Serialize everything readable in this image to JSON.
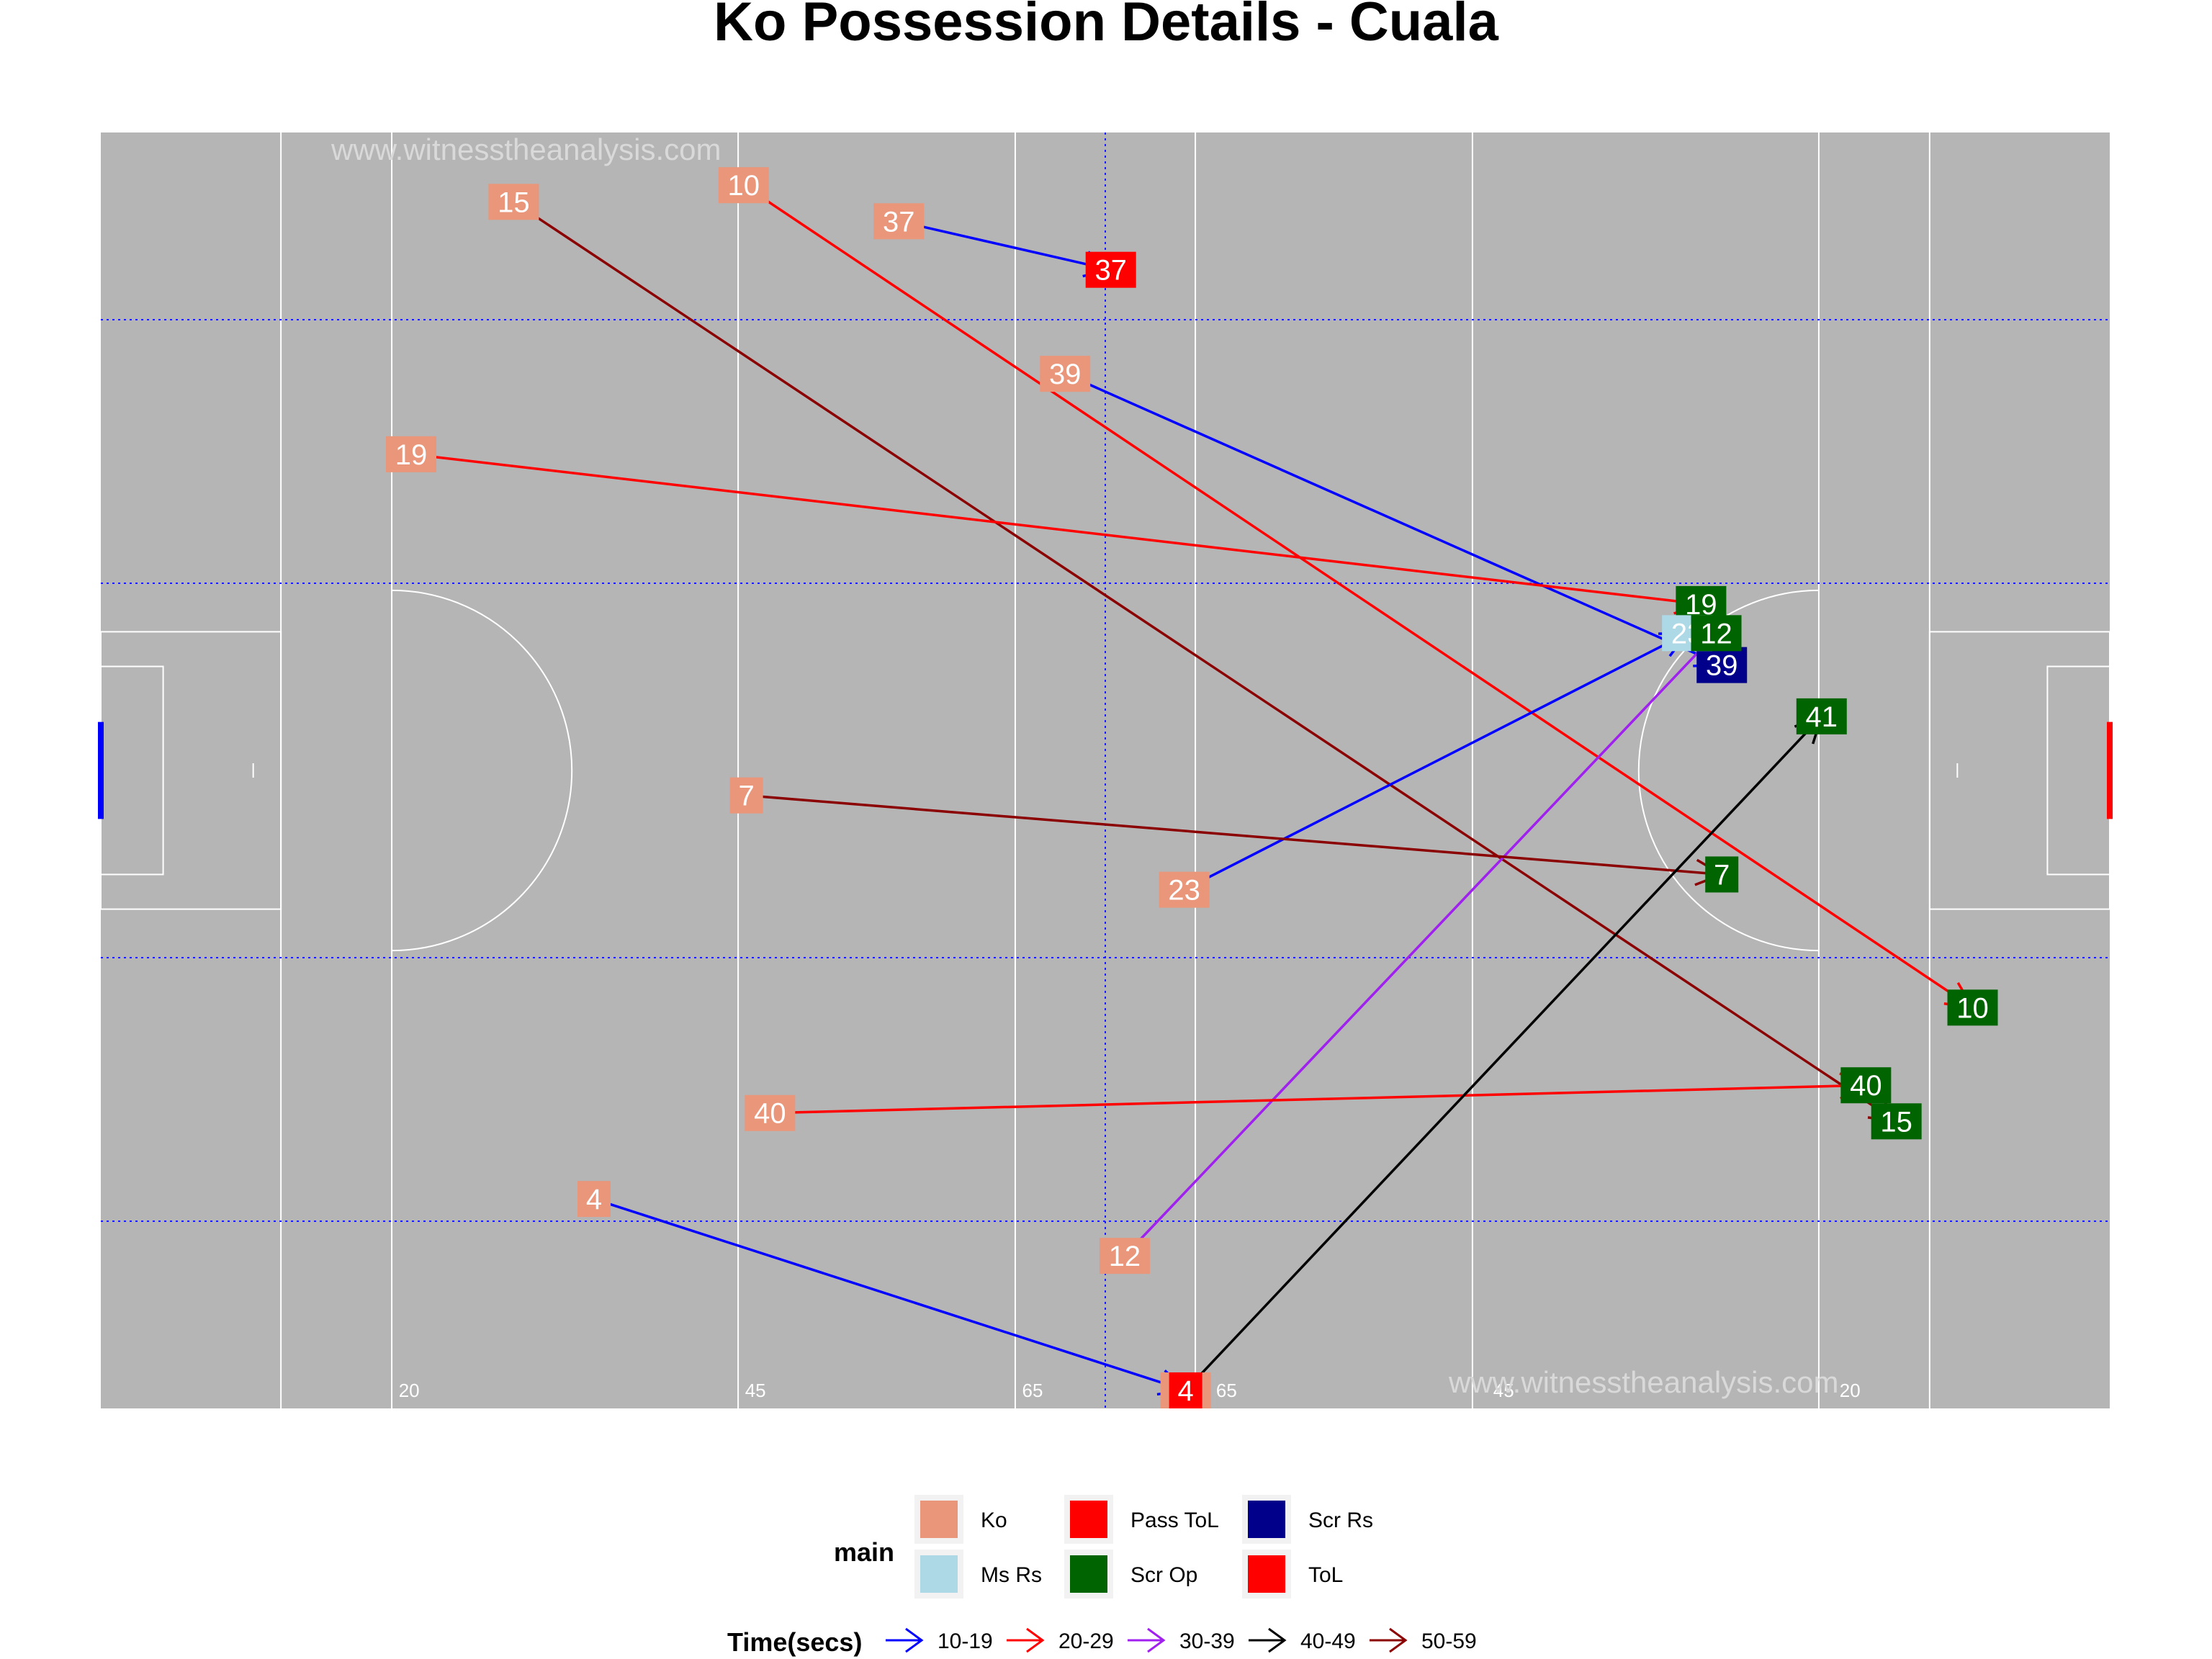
{
  "chart_data": {
    "type": "scatter",
    "title": "Ko Possession Details - Cuala",
    "watermarks": [
      "www.witnesstheanalysis.com",
      "www.witnesstheanalysis.com"
    ],
    "pitch": {
      "background": "#b5b5b5",
      "line_color": "#ffffff",
      "grid_color": "#1a1aff",
      "x_range": [
        0,
        145
      ],
      "y_range": [
        0,
        92
      ],
      "distance_labels": [
        {
          "x": 21.5,
          "text": "20"
        },
        {
          "x": 46.5,
          "text": "45"
        },
        {
          "x": 66.5,
          "text": "65"
        },
        {
          "x": 80.5,
          "text": "65"
        },
        {
          "x": 100.5,
          "text": "45"
        },
        {
          "x": 125.5,
          "text": "20"
        }
      ],
      "left_goal_color": "#0000ff",
      "right_goal_color": "#ff0000"
    },
    "main_colors": {
      "Ko": "#e9967a",
      "Ms Rs": "#add8e6",
      "Pass ToL": "#ff0000",
      "Scr Op": "#006400",
      "Scr Rs": "#00008b",
      "ToL": "#ff0000"
    },
    "time_colors": {
      "10-19": "#0000ff",
      "20-29": "#ff0000",
      "30-39": "#a020f0",
      "40-49": "#000000",
      "50-59": "#8b0000"
    },
    "possessions": [
      {
        "label": "15",
        "x1": 29.8,
        "y1": 87.0,
        "x2": 129.6,
        "y2": 20.7,
        "time": "50-59",
        "end": "Scr Op"
      },
      {
        "label": "10",
        "x1": 46.4,
        "y1": 88.2,
        "x2": 135.1,
        "y2": 28.9,
        "time": "20-29",
        "end": "Scr Op"
      },
      {
        "label": "37",
        "x1": 57.6,
        "y1": 85.6,
        "x2": 72.9,
        "y2": 82.1,
        "time": "10-19",
        "end": "Pass ToL"
      },
      {
        "label": "39",
        "x1": 69.6,
        "y1": 74.6,
        "x2": 117.0,
        "y2": 53.6,
        "time": "10-19",
        "end": "Scr Rs"
      },
      {
        "label": "19",
        "x1": 22.4,
        "y1": 68.8,
        "x2": 115.5,
        "y2": 58.0,
        "time": "20-29",
        "end": "Scr Op"
      },
      {
        "label": "23",
        "x1": 78.2,
        "y1": 37.4,
        "x2": 114.5,
        "y2": 55.9,
        "time": "10-19",
        "end": "Ms Rs"
      },
      {
        "label": "12",
        "x1": 73.9,
        "y1": 11.0,
        "x2": 116.6,
        "y2": 55.9,
        "time": "30-39",
        "end": "Scr Op"
      },
      {
        "label": "7",
        "x1": 46.6,
        "y1": 44.2,
        "x2": 117.0,
        "y2": 38.5,
        "time": "50-59",
        "end": "Scr Op"
      },
      {
        "label": "40",
        "x1": 48.3,
        "y1": 21.3,
        "x2": 127.4,
        "y2": 23.3,
        "time": "20-29",
        "end": "Scr Op"
      },
      {
        "label": "4",
        "x1": 35.6,
        "y1": 15.1,
        "x2": 78.3,
        "y2": 1.3,
        "time": "10-19",
        "end": "ToL"
      },
      {
        "label": "41",
        "x1": 78.3,
        "y1": 1.3,
        "x2": 124.2,
        "y2": 49.9,
        "time": "40-49",
        "end": "Scr Op"
      }
    ],
    "legend": {
      "main_title": "main",
      "main_items": [
        {
          "label": "Ko",
          "color": "#e9967a"
        },
        {
          "label": "Ms Rs",
          "color": "#add8e6"
        },
        {
          "label": "Pass ToL",
          "color": "#ff0000"
        },
        {
          "label": "Scr Op",
          "color": "#006400"
        },
        {
          "label": "Scr Rs",
          "color": "#00008b"
        },
        {
          "label": "ToL",
          "color": "#ff0000"
        }
      ],
      "time_title": "Time(secs)",
      "time_items": [
        {
          "label": "10-19",
          "color": "#0000ff"
        },
        {
          "label": "20-29",
          "color": "#ff0000"
        },
        {
          "label": "30-39",
          "color": "#a020f0"
        },
        {
          "label": "40-49",
          "color": "#000000"
        },
        {
          "label": "50-59",
          "color": "#8b0000"
        }
      ],
      "position": "bottom"
    }
  }
}
